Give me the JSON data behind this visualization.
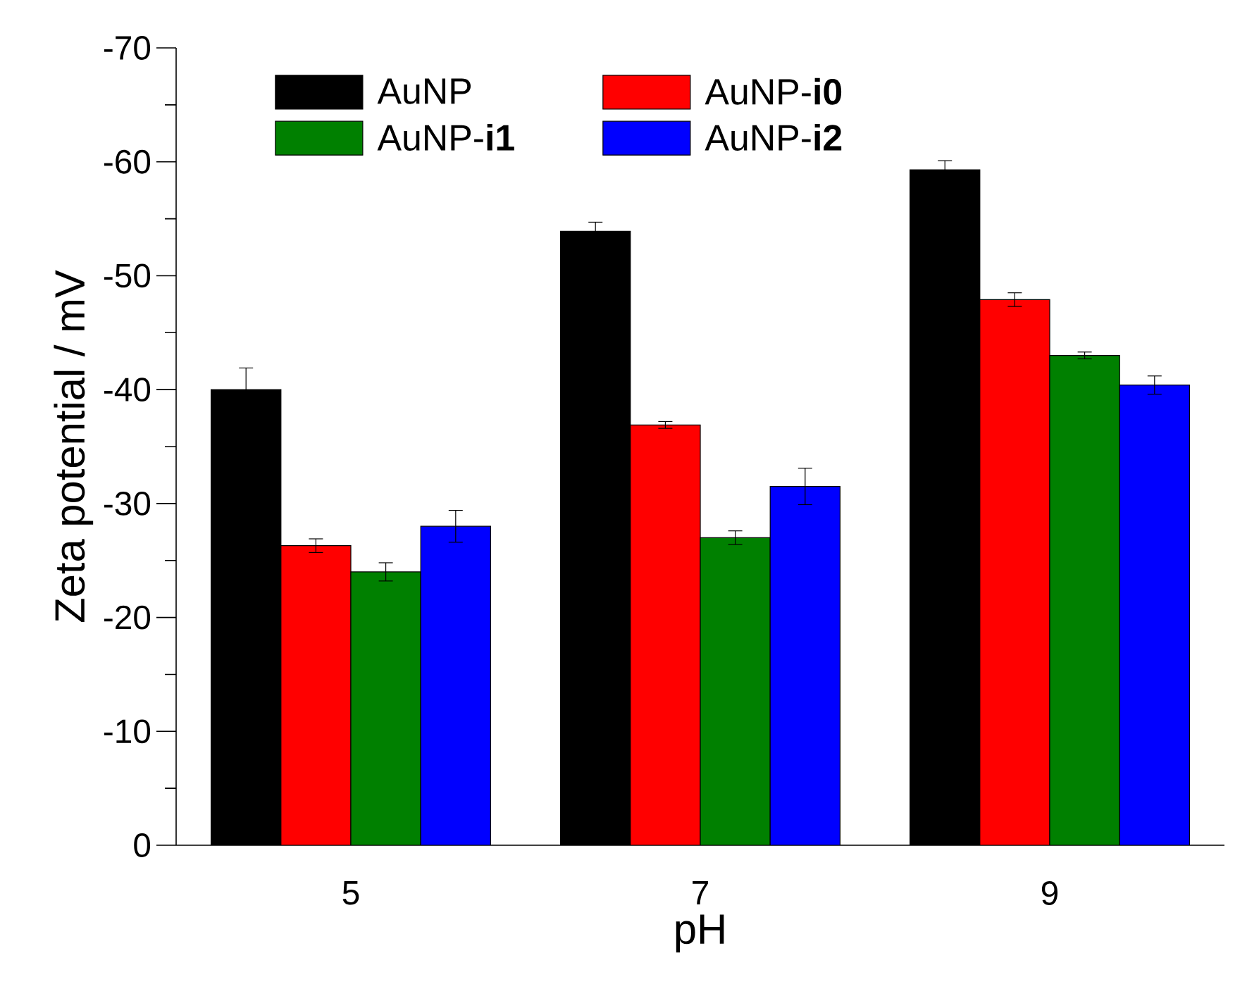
{
  "chart_data": {
    "type": "bar",
    "xlabel": "pH",
    "ylabel": "Zeta potential / mV",
    "categories": [
      "5",
      "7",
      "9"
    ],
    "series": [
      {
        "name": "AuNP",
        "color": "#000000",
        "values": [
          -40.0,
          -53.9,
          -59.3
        ],
        "errors": [
          1.9,
          0.8,
          0.8
        ]
      },
      {
        "name": "AuNP-**i0**",
        "color": "#ff0000",
        "values": [
          -26.3,
          -36.9,
          -47.9
        ],
        "errors": [
          0.6,
          0.3,
          0.6
        ]
      },
      {
        "name": "AuNP-**i1**",
        "color": "#008000",
        "values": [
          -24.0,
          -27.0,
          -43.0
        ],
        "errors": [
          0.8,
          0.6,
          0.3
        ]
      },
      {
        "name": "AuNP-**i2**",
        "color": "#0000ff",
        "values": [
          -28.0,
          -31.5,
          -40.4
        ],
        "errors": [
          1.4,
          1.6,
          0.8
        ]
      }
    ],
    "ylim": [
      0,
      -70
    ],
    "yticks": [
      0,
      -10,
      -20,
      -30,
      -40,
      -50,
      -60,
      -70
    ],
    "legend": "top left",
    "grid": false
  }
}
